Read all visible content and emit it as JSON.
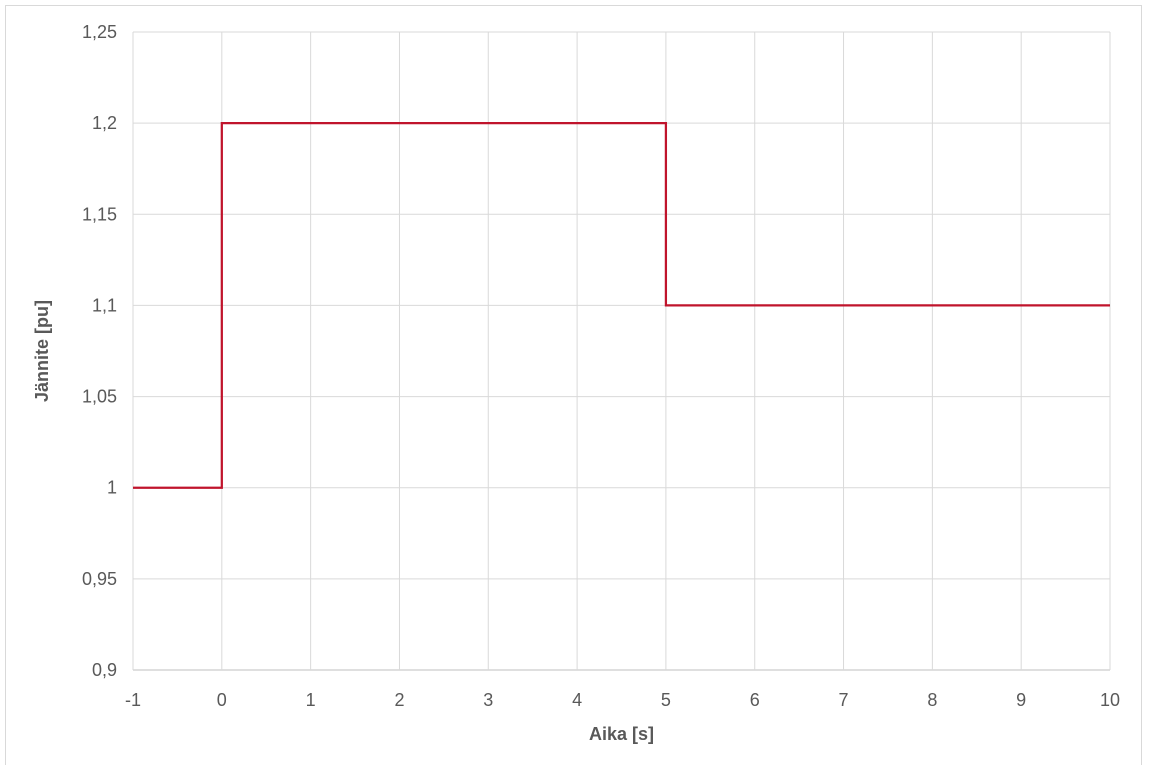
{
  "chart_data": {
    "type": "line",
    "title": "",
    "xlabel": "Aika [s]",
    "ylabel": "Jännite [pu]",
    "xlim": [
      -1,
      10
    ],
    "ylim": [
      0.9,
      1.25
    ],
    "x_ticks": [
      "-1",
      "0",
      "1",
      "2",
      "3",
      "4",
      "5",
      "6",
      "7",
      "8",
      "9",
      "10"
    ],
    "y_ticks": [
      "0,9",
      "0,95",
      "1",
      "1,05",
      "1,1",
      "1,15",
      "1,2",
      "1,25"
    ],
    "grid": true,
    "legend": "none",
    "series": [
      {
        "color": "#c0142c",
        "x": [
          -1,
          0,
          0,
          5,
          5,
          10
        ],
        "y": [
          1.0,
          1.0,
          1.2,
          1.2,
          1.1,
          1.1
        ]
      }
    ]
  },
  "colors": {
    "grid": "#d9d9d9",
    "text": "#595959",
    "series": "#c0142c"
  }
}
